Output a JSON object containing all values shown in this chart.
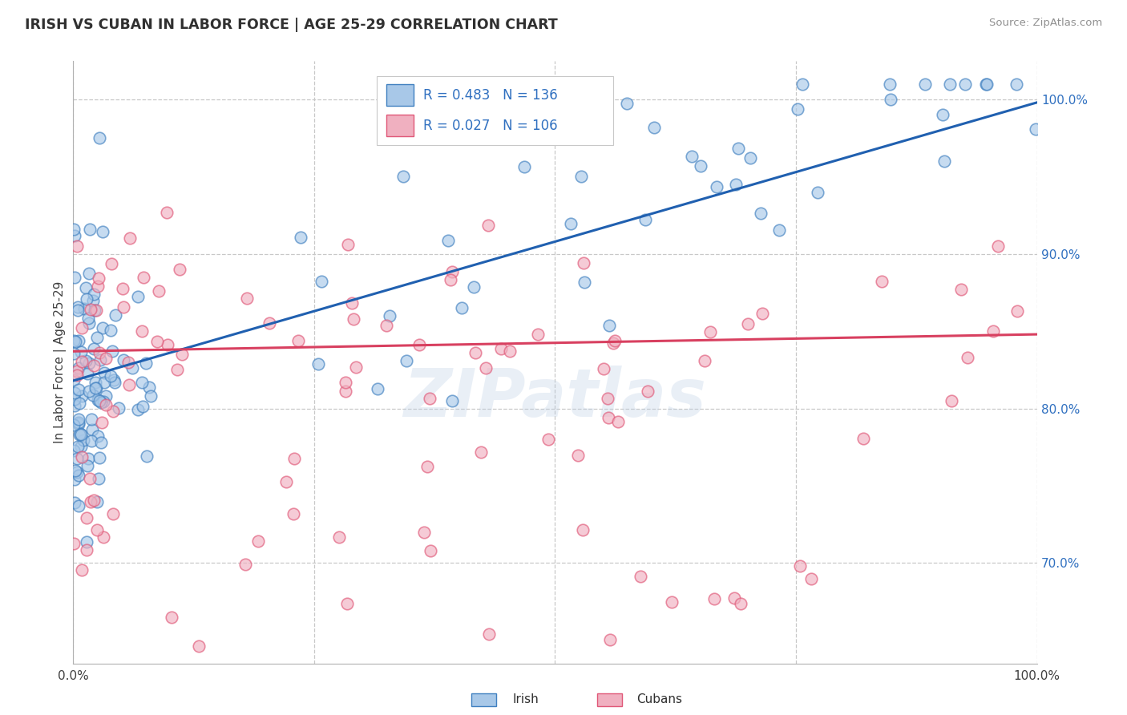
{
  "title": "IRISH VS CUBAN IN LABOR FORCE | AGE 25-29 CORRELATION CHART",
  "source_text": "Source: ZipAtlas.com",
  "ylabel": "In Labor Force | Age 25-29",
  "xlim": [
    0.0,
    1.0
  ],
  "ylim": [
    0.635,
    1.025
  ],
  "y_ticks": [
    0.7,
    0.8,
    0.9,
    1.0
  ],
  "irish_R": 0.483,
  "irish_N": 136,
  "cuban_R": 0.027,
  "cuban_N": 106,
  "irish_fill": "#a8c8e8",
  "irish_edge": "#4080c0",
  "cuban_fill": "#f0b0c0",
  "cuban_edge": "#e05878",
  "irish_line_color": "#2060b0",
  "cuban_line_color": "#d84060",
  "watermark_color": "#b8cce4",
  "background_color": "#ffffff",
  "grid_color": "#c8c8c8",
  "title_color": "#303030",
  "source_color": "#909090",
  "right_tick_color": "#3070c0",
  "legend_irish_label": "Irish",
  "legend_cuban_label": "Cubans"
}
